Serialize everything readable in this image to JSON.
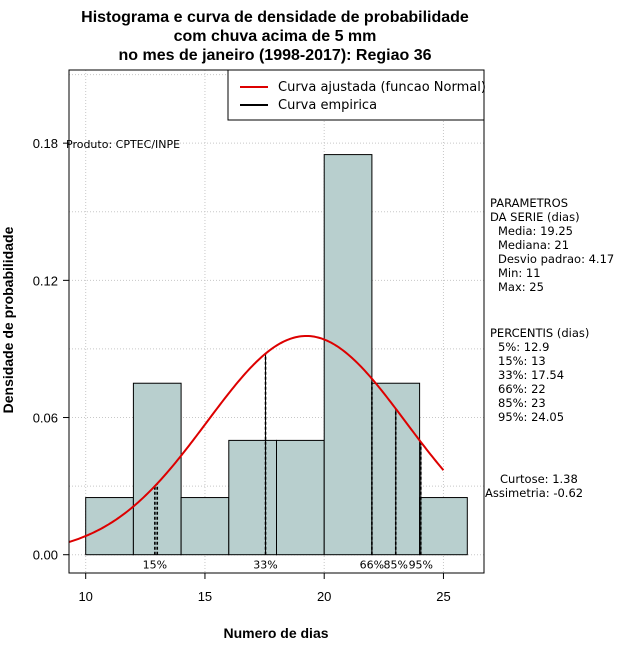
{
  "chart_data": {
    "type": "bar",
    "title": [
      "Histograma e curva de densidade de probabilidade",
      "com chuva acima de 5 mm",
      "no mes de janeiro (1998-2017): Regiao 36"
    ],
    "xlabel": "Numero de dias",
    "ylabel": "Densidade de probabilidade",
    "xlim": [
      9.3,
      26.7
    ],
    "ylim": [
      -0.008,
      0.212
    ],
    "xticks": [
      10,
      15,
      20,
      25
    ],
    "yticks": [
      0.0,
      0.06,
      0.12,
      0.18
    ],
    "xtick_labels": [
      "10",
      "15",
      "20",
      "25"
    ],
    "ytick_labels": [
      "0.00",
      "0.06",
      "0.12",
      "0.18"
    ],
    "grid": true,
    "bins": [
      {
        "x0": 10,
        "x1": 12,
        "density": 0.025
      },
      {
        "x0": 12,
        "x1": 14,
        "density": 0.075
      },
      {
        "x0": 14,
        "x1": 16,
        "density": 0.025
      },
      {
        "x0": 16,
        "x1": 18,
        "density": 0.05
      },
      {
        "x0": 18,
        "x1": 20,
        "density": 0.05
      },
      {
        "x0": 20,
        "x1": 22,
        "density": 0.175
      },
      {
        "x0": 22,
        "x1": 24,
        "density": 0.075
      },
      {
        "x0": 24,
        "x1": 26,
        "density": 0.025
      }
    ],
    "bar_color": "#b8cfce",
    "normal_curve": {
      "mean": 19.25,
      "sd": 4.17,
      "x_from": 9.3,
      "x_to": 25.0,
      "color": "#dd0000"
    },
    "percentile_lines": [
      {
        "x": 12.9,
        "label": "15%",
        "style": "dashed"
      },
      {
        "x": 13.0,
        "label": "",
        "style": "dashed"
      },
      {
        "x": 17.54,
        "label": "33%",
        "style": "dashed"
      },
      {
        "x": 22.0,
        "label": "66%",
        "style": "dashed"
      },
      {
        "x": 23.0,
        "label": "85%",
        "style": "dashed"
      },
      {
        "x": 24.05,
        "label": "95%",
        "style": "dashed"
      },
      {
        "x": 17.54,
        "label": "",
        "style": "solid"
      },
      {
        "x": 22.0,
        "label": "",
        "style": "solid"
      },
      {
        "x": 23.0,
        "label": "",
        "style": "solid"
      },
      {
        "x": 24.05,
        "label": "",
        "style": "solid"
      }
    ],
    "legend": {
      "placement": "top-right",
      "entries": [
        {
          "label": "Curva ajustada (funcao Normal)",
          "color": "#dd0000"
        },
        {
          "label": "Curva empirica",
          "color": "#000000"
        }
      ]
    },
    "annotation": "Produto: CPTEC/INPE"
  },
  "side_panel": {
    "parametros": [
      "PARAMETROS",
      "DA SERIE (dias)",
      "Media: 19.25",
      "Mediana: 21",
      "Desvio padrao: 4.17",
      "Min: 11",
      "Max: 25"
    ],
    "percentis": [
      "PERCENTIS (dias)",
      "5%: 12.9",
      "15%: 13",
      "33%: 17.54",
      "66%: 22",
      "85%: 23",
      "95%: 24.05"
    ],
    "shape": [
      "Curtose: 1.38",
      "Assimetria: -0.62"
    ]
  }
}
